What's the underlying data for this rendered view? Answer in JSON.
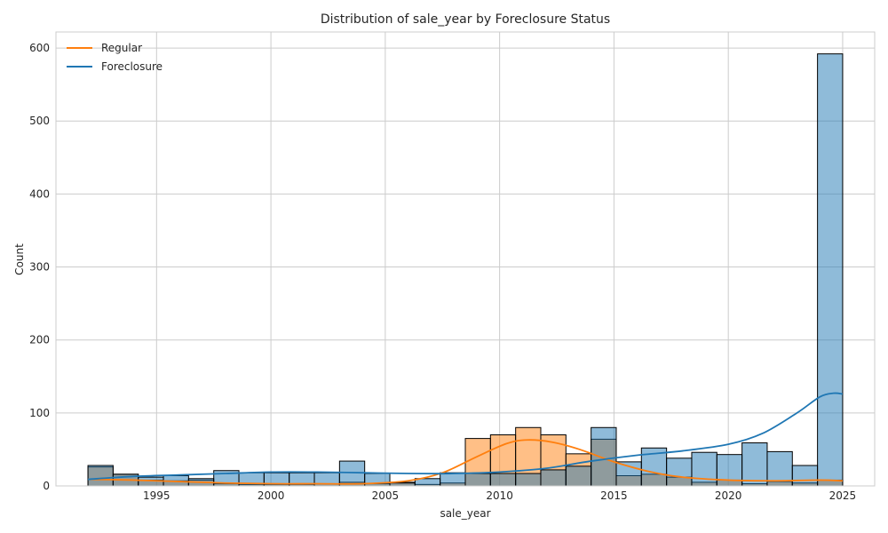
{
  "chart_data": {
    "type": "bar",
    "title": "Distribution of sale_year by Foreclosure Status",
    "xlabel": "sale_year",
    "ylabel": "Count",
    "xlim": [
      1990.6,
      2026.4
    ],
    "ylim": [
      0,
      622
    ],
    "xticks": [
      1995,
      2000,
      2005,
      2010,
      2015,
      2020,
      2025
    ],
    "yticks": [
      0,
      100,
      200,
      300,
      400,
      500,
      600
    ],
    "grid": true,
    "legend_position": "top-left",
    "bin_edges": [
      1992,
      1993.1,
      1994.2,
      1995.3,
      1996.4,
      1997.5,
      1998.6,
      1999.7,
      2000.8,
      2001.9,
      2003.0,
      2004.1,
      2005.2,
      2006.3,
      2007.4,
      2008.5,
      2009.6,
      2010.7,
      2011.8,
      2012.9,
      2014.0,
      2015.1,
      2016.2,
      2017.3,
      2018.4,
      2019.5,
      2020.6,
      2021.7,
      2022.8,
      2023.9,
      2025.0
    ],
    "series": [
      {
        "name": "Regular",
        "color": "#ff7f0e",
        "values": [
          26,
          16,
          8,
          7,
          8,
          3,
          2,
          2,
          2,
          3,
          5,
          3,
          5,
          2,
          4,
          65,
          70,
          80,
          70,
          44,
          64,
          14,
          16,
          12,
          5,
          8,
          3,
          6,
          4,
          8
        ],
        "kde": [
          [
            1992,
            9
          ],
          [
            1994,
            8
          ],
          [
            1996,
            6
          ],
          [
            1998,
            4
          ],
          [
            2000,
            3
          ],
          [
            2002,
            3
          ],
          [
            2004,
            3
          ],
          [
            2006,
            7
          ],
          [
            2007.5,
            18
          ],
          [
            2009,
            40
          ],
          [
            2010.3,
            58
          ],
          [
            2011.2,
            63
          ],
          [
            2012.3,
            60
          ],
          [
            2013.5,
            50
          ],
          [
            2015,
            33
          ],
          [
            2016.5,
            20
          ],
          [
            2018,
            12
          ],
          [
            2020,
            8
          ],
          [
            2022,
            7
          ],
          [
            2024,
            8
          ],
          [
            2025,
            7
          ]
        ]
      },
      {
        "name": "Foreclosure",
        "color": "#1f77b4",
        "values": [
          28,
          16,
          12,
          14,
          10,
          21,
          18,
          18,
          18,
          18,
          34,
          17,
          4,
          10,
          18,
          17,
          17,
          17,
          22,
          27,
          80,
          33,
          52,
          38,
          46,
          43,
          59,
          47,
          28,
          592
        ],
        "kde": [
          [
            1992,
            9
          ],
          [
            1994,
            13
          ],
          [
            1996,
            15
          ],
          [
            1998,
            17
          ],
          [
            2000,
            19
          ],
          [
            2002,
            19
          ],
          [
            2004,
            18
          ],
          [
            2006,
            17
          ],
          [
            2008,
            17
          ],
          [
            2010,
            19
          ],
          [
            2012,
            24
          ],
          [
            2014,
            34
          ],
          [
            2016,
            42
          ],
          [
            2018,
            48
          ],
          [
            2020,
            57
          ],
          [
            2021.5,
            72
          ],
          [
            2023,
            100
          ],
          [
            2024,
            122
          ],
          [
            2024.6,
            127
          ],
          [
            2025,
            126
          ]
        ]
      }
    ]
  }
}
